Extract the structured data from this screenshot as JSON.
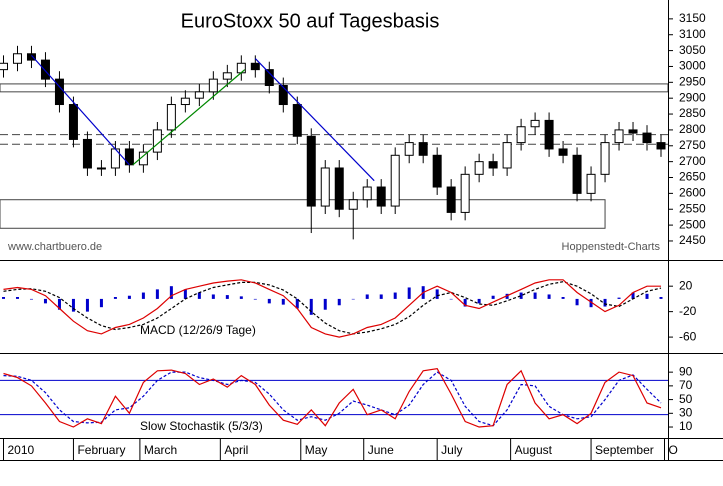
{
  "chart_data": [
    {
      "type": "candlestick",
      "title": "EuroStoxx 50 auf Tagesbasis",
      "source": "www.chartbuero.de",
      "provider": "Hoppenstedt-Charts",
      "x": [
        0,
        4,
        8,
        12,
        16,
        20,
        24,
        28,
        32,
        36,
        40,
        44,
        48,
        52,
        56,
        60,
        64,
        68,
        72,
        76,
        80,
        84,
        88,
        92,
        96,
        100,
        104,
        108,
        112,
        116,
        120,
        124,
        128,
        132,
        136,
        140,
        144,
        148,
        152,
        156,
        160,
        164,
        168,
        172,
        176,
        180,
        184,
        188
      ],
      "open": [
        2990,
        3010,
        3040,
        3020,
        2960,
        2880,
        2770,
        2680,
        2680,
        2740,
        2690,
        2730,
        2800,
        2880,
        2900,
        2920,
        2960,
        2980,
        3010,
        2990,
        2940,
        2880,
        2780,
        2560,
        2680,
        2550,
        2580,
        2620,
        2560,
        2720,
        2760,
        2720,
        2620,
        2540,
        2660,
        2700,
        2680,
        2760,
        2810,
        2830,
        2740,
        2720,
        2600,
        2660,
        2760,
        2800,
        2790,
        2760
      ],
      "high": [
        3035,
        3065,
        3065,
        3045,
        2985,
        2905,
        2795,
        2705,
        2765,
        2765,
        2755,
        2825,
        2905,
        2925,
        2945,
        2985,
        3005,
        3035,
        3035,
        3015,
        2965,
        2905,
        2805,
        2705,
        2705,
        2605,
        2645,
        2645,
        2745,
        2785,
        2785,
        2745,
        2645,
        2685,
        2725,
        2725,
        2785,
        2835,
        2855,
        2855,
        2765,
        2745,
        2685,
        2785,
        2825,
        2825,
        2815,
        2785
      ],
      "low": [
        2965,
        2985,
        2995,
        2935,
        2855,
        2745,
        2655,
        2655,
        2655,
        2665,
        2665,
        2705,
        2775,
        2855,
        2875,
        2895,
        2935,
        2955,
        2965,
        2915,
        2855,
        2755,
        2475,
        2535,
        2525,
        2455,
        2555,
        2535,
        2535,
        2695,
        2695,
        2595,
        2515,
        2515,
        2635,
        2655,
        2655,
        2735,
        2785,
        2715,
        2695,
        2575,
        2575,
        2635,
        2735,
        2765,
        2735,
        2715
      ],
      "close": [
        3010,
        3040,
        3020,
        2960,
        2880,
        2770,
        2680,
        2680,
        2740,
        2690,
        2730,
        2800,
        2880,
        2900,
        2920,
        2960,
        2980,
        3010,
        2990,
        2940,
        2880,
        2780,
        2560,
        2680,
        2550,
        2580,
        2620,
        2560,
        2720,
        2760,
        2720,
        2620,
        2540,
        2660,
        2700,
        2680,
        2760,
        2810,
        2830,
        2740,
        2720,
        2600,
        2660,
        2760,
        2800,
        2790,
        2760,
        2740
      ],
      "up_color": "#ffffff",
      "down_color": "#000000",
      "xlim": [
        -1,
        190
      ],
      "xticks": [
        {
          "value": 0,
          "label": "2010"
        },
        {
          "value": 20,
          "label": "February"
        },
        {
          "value": 39,
          "label": "March"
        },
        {
          "value": 62,
          "label": "April"
        },
        {
          "value": 85,
          "label": "May"
        },
        {
          "value": 103,
          "label": "June"
        },
        {
          "value": 124,
          "label": "July"
        },
        {
          "value": 145,
          "label": "August"
        },
        {
          "value": 168,
          "label": "September"
        },
        {
          "value": 189,
          "label": "O"
        }
      ],
      "ylim": [
        2390,
        3200
      ],
      "yticks": [
        2450,
        2500,
        2550,
        2600,
        2650,
        2700,
        2750,
        2800,
        2850,
        2900,
        2950,
        3000,
        3050,
        3100,
        3150
      ],
      "trendlines": [
        {
          "color": "#0000cc",
          "x": [
            8,
            36
          ],
          "y": [
            3035,
            2690
          ]
        },
        {
          "color": "#008800",
          "x": [
            37,
            69
          ],
          "y": [
            2690,
            2990
          ]
        },
        {
          "color": "#0000cc",
          "x": [
            72,
            106
          ],
          "y": [
            3025,
            2640
          ]
        }
      ],
      "boxes": [
        {
          "x": [
            -1,
            190
          ],
          "y": [
            2920,
            2945
          ]
        },
        {
          "x": [
            -1,
            172
          ],
          "y": [
            2490,
            2580
          ]
        }
      ],
      "levels": [
        2785,
        2755
      ]
    },
    {
      "type": "line",
      "label": "MACD (12/26/9 Tage)",
      "series": [
        {
          "color": "#0000cc",
          "style": "bar",
          "values": [
            3,
            3,
            -1,
            -7,
            -17,
            -20,
            -20,
            -13,
            3,
            5,
            10,
            15,
            20,
            15,
            10,
            7,
            6,
            4,
            -1,
            -7,
            -9,
            -15,
            -25,
            -17,
            -10,
            0,
            7,
            7,
            10,
            18,
            20,
            15,
            0,
            -12,
            -7,
            5,
            8,
            10,
            10,
            7,
            3,
            -10,
            -13,
            -12,
            2,
            10,
            8,
            3
          ]
        },
        {
          "color": "#000000",
          "style": "dash",
          "values": [
            12,
            15,
            16,
            12,
            2,
            -15,
            -30,
            -42,
            -48,
            -45,
            -40,
            -30,
            -15,
            0,
            10,
            18,
            22,
            26,
            26,
            22,
            14,
            0,
            -20,
            -38,
            -50,
            -55,
            -52,
            -47,
            -40,
            -28,
            -10,
            5,
            10,
            2,
            -8,
            -10,
            -3,
            5,
            15,
            23,
            27,
            20,
            8,
            -8,
            -12,
            0,
            12,
            17
          ]
        },
        {
          "color": "#dd0000",
          "style": "solid",
          "values": [
            15,
            18,
            15,
            5,
            -15,
            -35,
            -50,
            -55,
            -45,
            -40,
            -30,
            -15,
            5,
            15,
            20,
            25,
            28,
            30,
            25,
            15,
            5,
            -15,
            -45,
            -55,
            -60,
            -55,
            -45,
            -40,
            -30,
            -10,
            10,
            20,
            10,
            -10,
            -15,
            -5,
            5,
            15,
            25,
            30,
            30,
            10,
            -5,
            -20,
            -10,
            10,
            20,
            20
          ]
        }
      ],
      "ylim": [
        -85,
        58
      ],
      "yticks": [
        20,
        -20,
        -60
      ]
    },
    {
      "type": "line",
      "label": "Slow Stochastik (5/3/3)",
      "series": [
        {
          "color": "#0000cc",
          "style": "dash",
          "values": [
            85,
            84,
            78,
            60,
            35,
            18,
            16,
            17,
            35,
            38,
            55,
            78,
            90,
            90,
            82,
            78,
            72,
            78,
            75,
            58,
            35,
            20,
            25,
            20,
            30,
            48,
            42,
            35,
            28,
            42,
            72,
            90,
            78,
            40,
            18,
            12,
            35,
            72,
            70,
            40,
            28,
            22,
            25,
            50,
            78,
            86,
            65,
            45
          ]
        },
        {
          "color": "#dd0000",
          "style": "solid",
          "values": [
            88,
            82,
            70,
            45,
            18,
            10,
            22,
            15,
            55,
            30,
            75,
            92,
            93,
            88,
            72,
            80,
            68,
            85,
            72,
            42,
            20,
            14,
            35,
            12,
            45,
            65,
            28,
            35,
            22,
            62,
            92,
            95,
            58,
            18,
            10,
            12,
            72,
            92,
            45,
            22,
            28,
            15,
            30,
            75,
            90,
            85,
            45,
            38
          ]
        }
      ],
      "levels": [
        78,
        28
      ],
      "level_color": "#0000cc",
      "ylim": [
        -6,
        115
      ],
      "yticks": [
        10,
        30,
        50,
        70,
        90
      ]
    }
  ]
}
